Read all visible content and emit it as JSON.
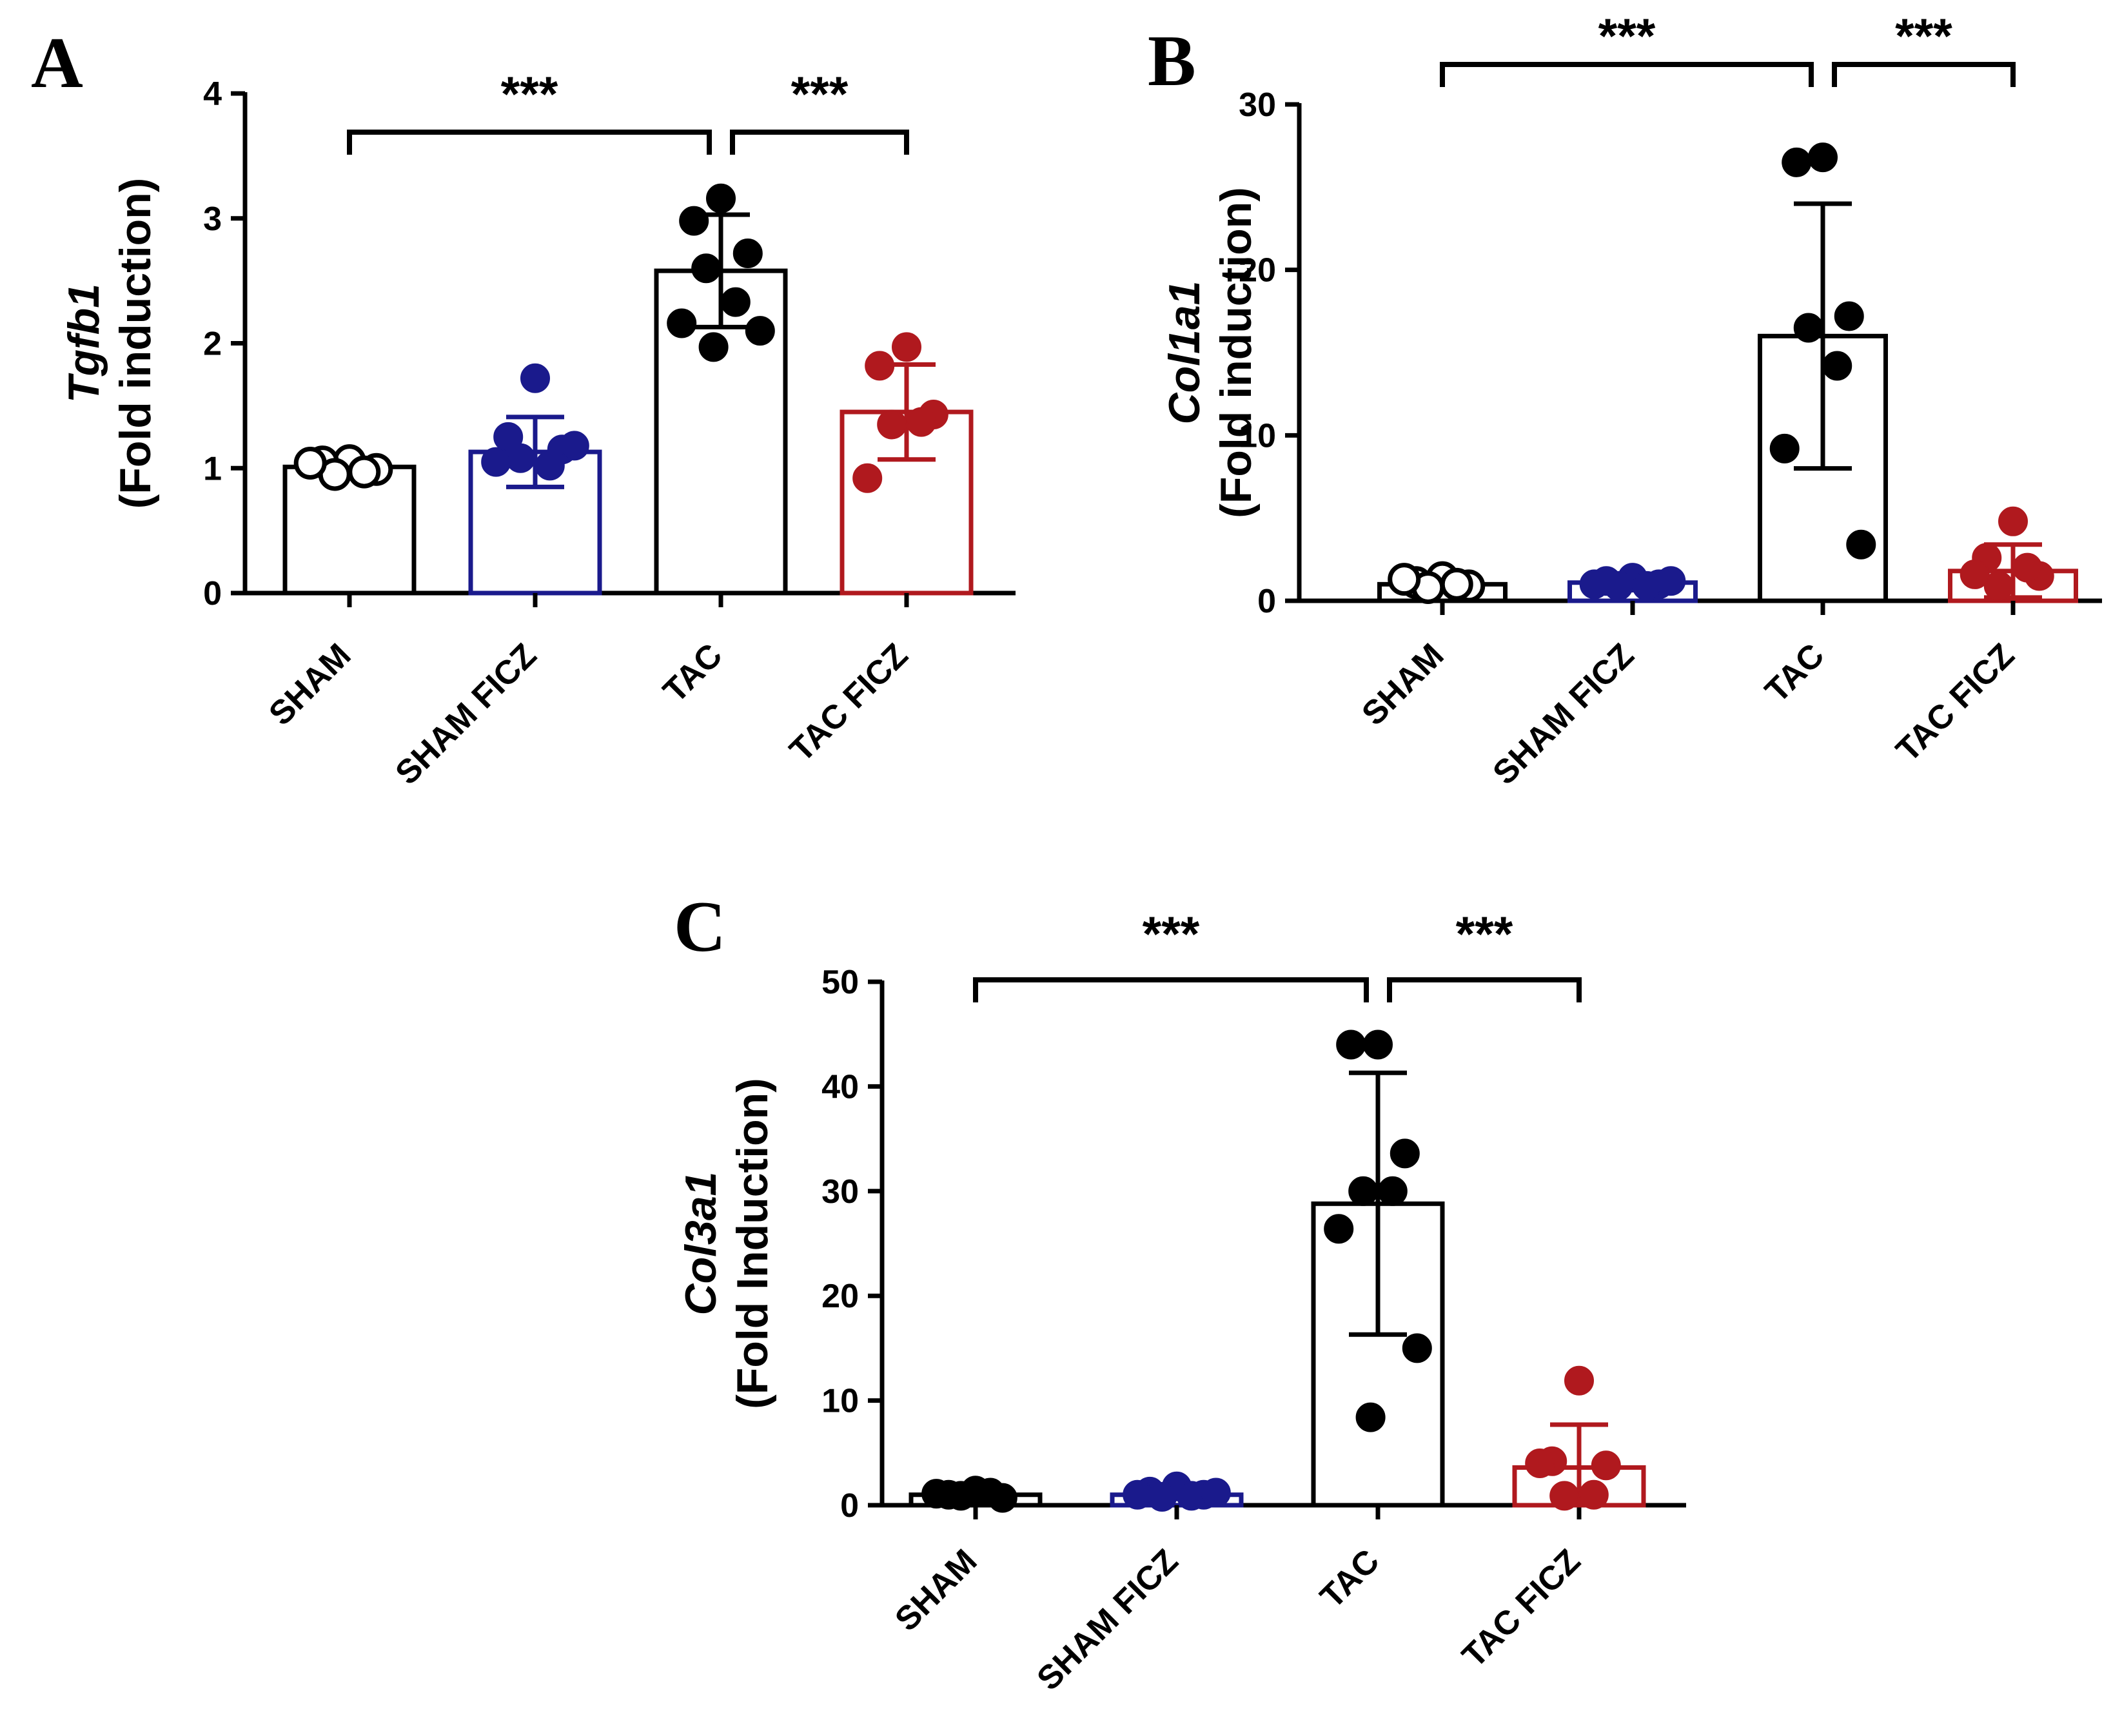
{
  "chart_data": [
    {
      "type": "bar",
      "panel": "A",
      "gene": "Tgfb1",
      "ylabel": "(Fold induction)",
      "categories": [
        "SHAM",
        "SHAM FICZ",
        "TAC",
        "TAC FICZ"
      ],
      "ylim": [
        0,
        4
      ],
      "yticks": [
        0,
        1,
        2,
        3,
        4
      ],
      "ytick_labels": [
        "0",
        "1",
        "2",
        "3",
        "4"
      ],
      "series": [
        {
          "name": "mean",
          "values": [
            1.01,
            1.13,
            2.58,
            1.45
          ]
        }
      ],
      "error_sd": [
        0.07,
        0.28,
        0.45,
        0.38
      ],
      "points": [
        [
          1.06,
          1.05,
          0.99,
          0.95,
          0.97,
          1.04
        ],
        [
          1.72,
          1.25,
          1.15,
          1.08,
          1.02,
          1.05,
          1.18
        ],
        [
          3.16,
          2.98,
          2.72,
          2.6,
          2.33,
          2.16,
          2.1,
          1.97
        ],
        [
          1.97,
          1.82,
          1.43,
          1.35,
          1.37,
          0.92
        ]
      ],
      "colors": [
        "#000000",
        "#1a1a8c",
        "#000000",
        "#b0191e"
      ],
      "hollow_points": [
        true,
        false,
        false,
        false
      ],
      "significance": [
        {
          "from": 0,
          "to": 2,
          "label": "***"
        },
        {
          "from": 2,
          "to": 3,
          "label": "***"
        }
      ]
    },
    {
      "type": "bar",
      "panel": "B",
      "gene": "Col1a1",
      "ylabel": "(Fold induction)",
      "categories": [
        "SHAM",
        "SHAM FICZ",
        "TAC",
        "TAC FICZ"
      ],
      "ylim": [
        0,
        30
      ],
      "yticks": [
        0,
        10,
        20,
        30
      ],
      "ytick_labels": [
        "0",
        "10",
        "20",
        "30"
      ],
      "series": [
        {
          "name": "mean",
          "values": [
            1.0,
            1.1,
            16.0,
            1.8
          ]
        }
      ],
      "error_sd": [
        0.15,
        0.1,
        8.0,
        1.6
      ],
      "points": [
        [
          1.4,
          1.1,
          0.9,
          0.8,
          1.0,
          1.3
        ],
        [
          1.4,
          1.2,
          1.0,
          0.9,
          0.9,
          1.0,
          1.2
        ],
        [
          26.8,
          26.5,
          17.2,
          16.5,
          14.2,
          9.2,
          3.4
        ],
        [
          4.8,
          2.6,
          1.5,
          0.9,
          2.0,
          1.6
        ]
      ],
      "colors": [
        "#000000",
        "#1a1a8c",
        "#000000",
        "#b0191e"
      ],
      "hollow_points": [
        true,
        false,
        false,
        false
      ],
      "significance": [
        {
          "from": 0,
          "to": 2,
          "label": "***"
        },
        {
          "from": 2,
          "to": 3,
          "label": "***"
        }
      ]
    },
    {
      "type": "bar",
      "panel": "C",
      "gene": "Col3a1",
      "ylabel": "(Fold Induction)",
      "categories": [
        "SHAM",
        "SHAM FICZ",
        "TAC",
        "TAC FICZ"
      ],
      "ylim": [
        0,
        50
      ],
      "yticks": [
        0,
        10,
        20,
        30,
        40,
        50
      ],
      "ytick_labels": [
        "0",
        "10",
        "20",
        "30",
        "40",
        "50"
      ],
      "series": [
        {
          "name": "mean",
          "values": [
            1.0,
            1.0,
            28.8,
            3.6
          ]
        }
      ],
      "error_sd": [
        0.3,
        0.3,
        12.5,
        4.1
      ],
      "points": [
        [
          1.4,
          1.0,
          0.7,
          0.9,
          1.2,
          1.1
        ],
        [
          1.8,
          1.3,
          1.0,
          0.8,
          0.9,
          1.0,
          1.2
        ],
        [
          44.0,
          44.0,
          33.6,
          30.0,
          30.0,
          26.4,
          15.0,
          8.4
        ],
        [
          11.9,
          4.2,
          3.8,
          0.9,
          1.0,
          4.0
        ]
      ],
      "colors": [
        "#000000",
        "#1a1a8c",
        "#000000",
        "#b0191e"
      ],
      "hollow_points": [
        false,
        false,
        false,
        false
      ],
      "significance": [
        {
          "from": 0,
          "to": 2,
          "label": "***"
        },
        {
          "from": 2,
          "to": 3,
          "label": "***"
        }
      ]
    }
  ]
}
